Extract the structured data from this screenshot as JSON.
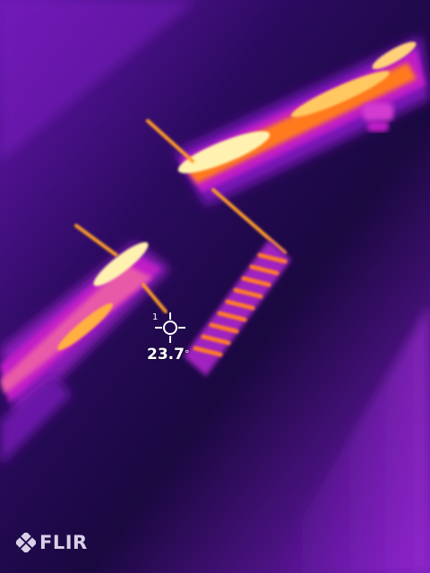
{
  "camera": {
    "brand": "FLIR",
    "palette": "iron"
  },
  "spot_meter": {
    "index": "1",
    "temperature_value": "23.7",
    "temperature_unit": "°"
  },
  "colors": {
    "background_cold": "#1a0840",
    "background_mid": "#5a0fa0",
    "warm": "#c21fc8",
    "hot": "#ff8c1a",
    "hottest": "#fff4b8",
    "overlay_text": "#ffffff"
  }
}
